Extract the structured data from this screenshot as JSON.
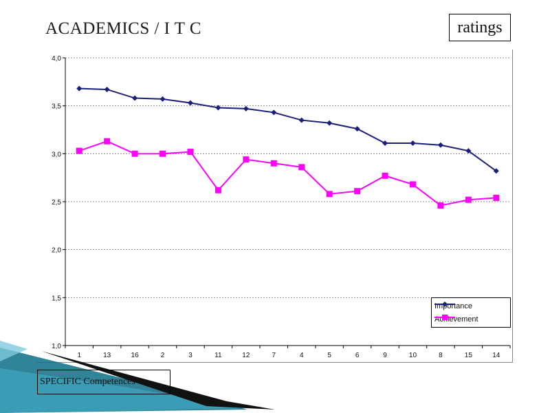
{
  "slide": {
    "title": "ACADEMICS / I T C",
    "ratings_label": "ratings",
    "caption": "SPECIFIC Competences"
  },
  "colors": {
    "importance": "#1a1f7a",
    "achievement": "#ff00ff",
    "grid": "#8c8c8c",
    "accent_teal": "#0d6f86"
  },
  "chart_data": {
    "type": "line",
    "categories": [
      "1",
      "13",
      "16",
      "2",
      "3",
      "11",
      "12",
      "7",
      "4",
      "5",
      "6",
      "9",
      "10",
      "8",
      "15",
      "14"
    ],
    "series": [
      {
        "name": "Importance",
        "marker": "diamond",
        "color": "#1a1f7a",
        "values": [
          3.68,
          3.67,
          3.58,
          3.57,
          3.53,
          3.48,
          3.47,
          3.43,
          3.35,
          3.32,
          3.26,
          3.11,
          3.11,
          3.09,
          3.03,
          2.82
        ]
      },
      {
        "name": "Achievement",
        "marker": "square",
        "color": "#ff00ff",
        "values": [
          3.03,
          3.13,
          3.0,
          3.0,
          3.02,
          2.62,
          2.94,
          2.9,
          2.86,
          2.58,
          2.61,
          2.77,
          2.68,
          2.46,
          2.52,
          2.54
        ]
      }
    ],
    "ylim": [
      1.0,
      4.0
    ],
    "yticks": [
      "1,0",
      "1,5",
      "2,0",
      "2,5",
      "3,0",
      "3,5",
      "4,0"
    ],
    "grid": true,
    "legend": "bottom-right"
  }
}
